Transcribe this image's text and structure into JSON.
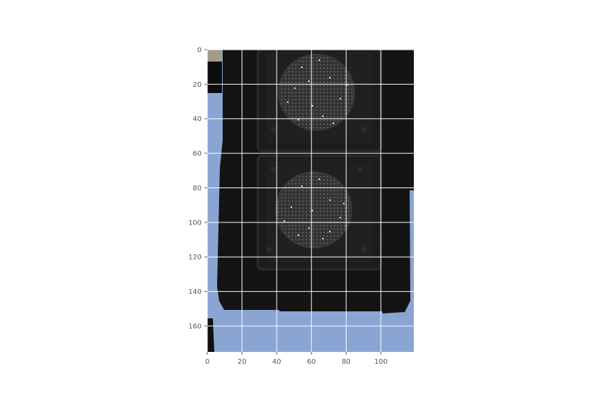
{
  "figure": {
    "kind": "image-plot",
    "subject": "traffic-light-close-up",
    "grid": true,
    "axis_style": "matplotlib-ggplot",
    "x_range": [
      0,
      119
    ],
    "y_range": [
      0,
      175
    ],
    "y_inverted": true,
    "x_ticks": [
      "0",
      "20",
      "40",
      "60",
      "80",
      "100"
    ],
    "y_ticks": [
      "0",
      "20",
      "40",
      "60",
      "80",
      "100",
      "120",
      "140",
      "160"
    ],
    "colors": {
      "sky": "#8aa5d4",
      "housing": "#141414",
      "lamp_face": "#2a2a2a",
      "border_strip": "#a39c8a",
      "grid": "#ffffff",
      "tick_label": "#555555"
    }
  }
}
